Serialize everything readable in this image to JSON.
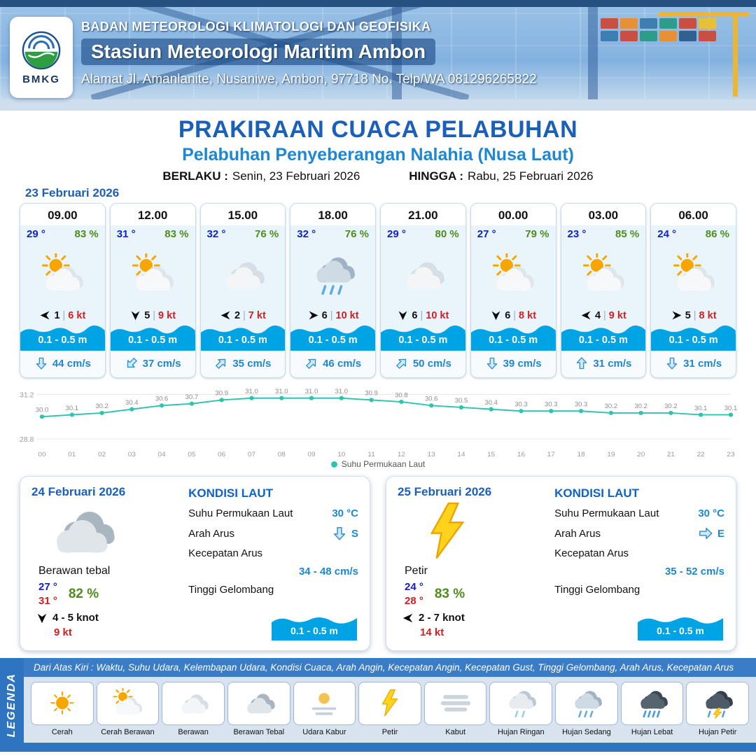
{
  "colors": {
    "title_blue": "#1a5fb8",
    "subtitle_blue": "#1d87d1",
    "wave_band": "#00a3e4",
    "temp_blue": "#1420c8",
    "temp_red": "#d21f1f",
    "humidity_green": "#4f8c1d",
    "current_blue": "#1e87cf",
    "chart_line": "#2ec4b0",
    "legend_bar_blue": "#2e74c0"
  },
  "header": {
    "org": "BADAN METEOROLOGI KLIMATOLOGI DAN GEOFISIKA",
    "station": "Stasiun Meteorologi Maritim Ambon",
    "address": "Alamat Jl. Amanlanite, Nusaniwe, Ambon, 97718   No. Telp/WA  081296265822",
    "logo_text": "BMKG"
  },
  "title": {
    "main": "PRAKIRAAN CUACA PELABUHAN",
    "subtitle": "Pelabuhan Penyeberangan Nalahia (Nusa Laut)",
    "valid_from_label": "BERLAKU :",
    "valid_from": "Senin, 23 Februari 2026",
    "valid_to_label": "HINGGA :",
    "valid_to": "Rabu, 25 Februari 2026"
  },
  "hourly": {
    "date": "23 Februari 2026",
    "sep": "|",
    "cards": [
      {
        "time": "09.00",
        "temp": "29 °",
        "humidity": "83 %",
        "weather_icon": "cerah-berawan",
        "wind_icon": "wind-w",
        "wind_speed": "1",
        "gust": "6 kt",
        "wave": "0.1 - 0.5 m",
        "current_icon": "cur-s",
        "current": "44 cm/s"
      },
      {
        "time": "12.00",
        "temp": "31 °",
        "humidity": "83 %",
        "weather_icon": "cerah-berawan",
        "wind_icon": "wind-s",
        "wind_speed": "5",
        "gust": "9 kt",
        "wave": "0.1 - 0.5 m",
        "current_icon": "cur-sw",
        "current": "37 cm/s"
      },
      {
        "time": "15.00",
        "temp": "32 °",
        "humidity": "76 %",
        "weather_icon": "berawan",
        "wind_icon": "wind-w",
        "wind_speed": "2",
        "gust": "7 kt",
        "wave": "0.1 - 0.5 m",
        "current_icon": "cur-ne",
        "current": "35 cm/s"
      },
      {
        "time": "18.00",
        "temp": "32 °",
        "humidity": "76 %",
        "weather_icon": "hujan-sedang",
        "wind_icon": "wind-e",
        "wind_speed": "6",
        "gust": "10 kt",
        "wave": "0.1 - 0.5 m",
        "current_icon": "cur-ne",
        "current": "46 cm/s"
      },
      {
        "time": "21.00",
        "temp": "29 °",
        "humidity": "80 %",
        "weather_icon": "berawan",
        "wind_icon": "wind-s",
        "wind_speed": "6",
        "gust": "10 kt",
        "wave": "0.1 - 0.5 m",
        "current_icon": "cur-ne",
        "current": "50 cm/s"
      },
      {
        "time": "00.00",
        "temp": "27 °",
        "humidity": "79 %",
        "weather_icon": "cerah-berawan",
        "wind_icon": "wind-s",
        "wind_speed": "6",
        "gust": "8 kt",
        "wave": "0.1 - 0.5 m",
        "current_icon": "cur-s",
        "current": "39 cm/s"
      },
      {
        "time": "03.00",
        "temp": "23 °",
        "humidity": "85 %",
        "weather_icon": "cerah-berawan",
        "wind_icon": "wind-w",
        "wind_speed": "4",
        "gust": "9 kt",
        "wave": "0.1 - 0.5 m",
        "current_icon": "cur-n",
        "current": "31 cm/s"
      },
      {
        "time": "06.00",
        "temp": "24 °",
        "humidity": "86 %",
        "weather_icon": "cerah-berawan",
        "wind_icon": "wind-e",
        "wind_speed": "5",
        "gust": "8 kt",
        "wave": "0.1 - 0.5 m",
        "current_icon": "cur-s",
        "current": "31 cm/s"
      }
    ]
  },
  "chart_data": {
    "type": "line",
    "title": "",
    "series": [
      {
        "name": "Suhu Permukaan Laut",
        "values": [
          30.0,
          30.1,
          30.2,
          30.4,
          30.6,
          30.7,
          30.9,
          31.0,
          31.0,
          31.0,
          31.0,
          30.9,
          30.8,
          30.6,
          30.5,
          30.4,
          30.3,
          30.3,
          30.3,
          30.2,
          30.2,
          30.2,
          30.1,
          30.1
        ]
      }
    ],
    "x": [
      "00",
      "01",
      "02",
      "03",
      "04",
      "05",
      "06",
      "07",
      "08",
      "09",
      "10",
      "11",
      "12",
      "13",
      "14",
      "15",
      "16",
      "17",
      "18",
      "19",
      "20",
      "21",
      "22",
      "23"
    ],
    "ylim": [
      28.8,
      31.2
    ],
    "line_color": "#2ec4b0",
    "legend_position": "bottom",
    "grid": false
  },
  "daily": [
    {
      "date": "24 Februari 2026",
      "condition": "Berawan tebal",
      "weather_icon": "berawan-tebal",
      "temp_min": "27 °",
      "temp_max": "31 °",
      "humidity": "82 %",
      "wind_icon": "wind-s",
      "wind_range": "4  - 5 knot",
      "gust": "9 kt",
      "sea": {
        "title": "KONDISI LAUT",
        "sst_label": "Suhu Permukaan Laut",
        "sst": "30 °C",
        "current_dir_label": "Arah Arus",
        "current_icon": "cur-s",
        "current_dir": "S",
        "current_speed_label": "Kecepatan Arus",
        "current_speed": "34 - 48 cm/s",
        "wave_label": "Tinggi Gelombang",
        "wave": "0.1 - 0.5 m"
      }
    },
    {
      "date": "25 Februari 2026",
      "condition": "Petir",
      "weather_icon": "petir",
      "temp_min": "24 °",
      "temp_max": "28 °",
      "humidity": "83 %",
      "wind_icon": "wind-w",
      "wind_range": "2  - 7 knot",
      "gust": "14 kt",
      "sea": {
        "title": "KONDISI LAUT",
        "sst_label": "Suhu Permukaan Laut",
        "sst": "30 °C",
        "current_dir_label": "Arah Arus",
        "current_icon": "cur-e",
        "current_dir": "E",
        "current_speed_label": "Kecepatan Arus",
        "current_speed": "35 - 52 cm/s",
        "wave_label": "Tinggi Gelombang",
        "wave": "0.1 - 0.5 m"
      }
    }
  ],
  "legend": {
    "title": "LEGENDA",
    "note": "Dari Atas Kiri : Waktu, Suhu Udara, Kelembapan Udara, Kondisi Cuaca, Arah Angin, Kecepatan Angin, Kecepatan Gust, Tinggi Gelombang, Arah Arus, Kecepatan Arus",
    "items": [
      {
        "label": "Cerah",
        "icon": "cerah"
      },
      {
        "label": "Cerah Berawan",
        "icon": "cerah-berawan"
      },
      {
        "label": "Berawan",
        "icon": "berawan"
      },
      {
        "label": "Berawan Tebal",
        "icon": "berawan-tebal"
      },
      {
        "label": "Udara Kabur",
        "icon": "udara-kabur"
      },
      {
        "label": "Petir",
        "icon": "petir"
      },
      {
        "label": "Kabut",
        "icon": "kabut"
      },
      {
        "label": "Hujan Ringan",
        "icon": "hujan-ringan"
      },
      {
        "label": "Hujan Sedang",
        "icon": "hujan-sedang"
      },
      {
        "label": "Hujan Lebat",
        "icon": "hujan-lebat"
      },
      {
        "label": "Hujan Petir",
        "icon": "hujan-petir"
      }
    ]
  }
}
